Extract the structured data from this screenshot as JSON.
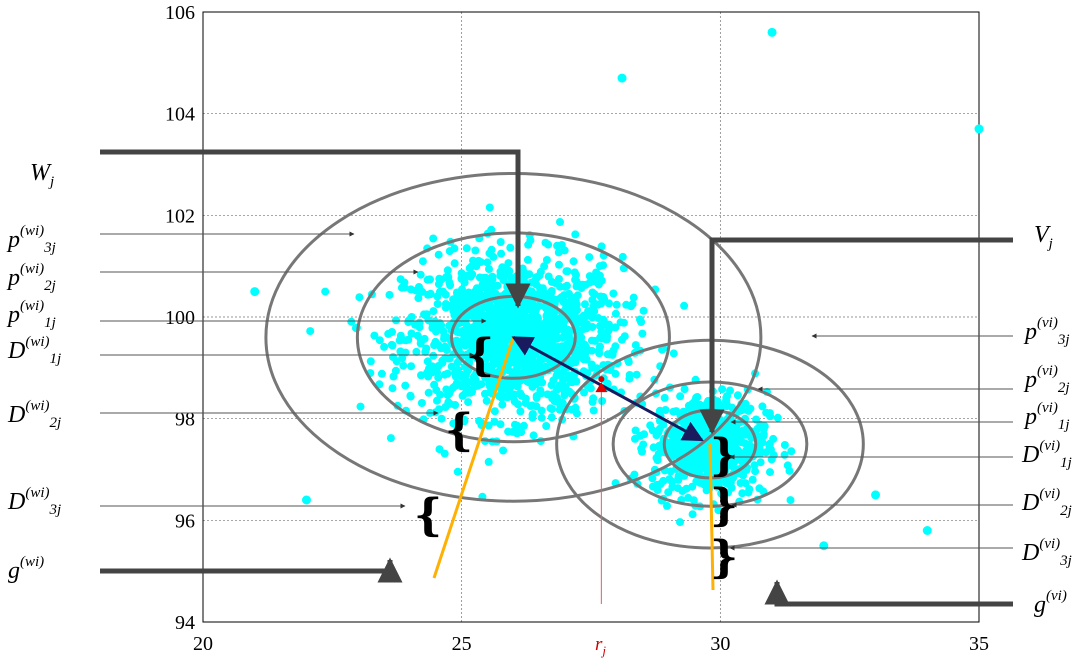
{
  "chart_data": {
    "type": "scatter",
    "xlim": [
      20,
      35
    ],
    "ylim": [
      94,
      106
    ],
    "x_ticks": [
      "20",
      "25",
      "30",
      "35"
    ],
    "y_ticks": [
      "94",
      "96",
      "98",
      "100",
      "102",
      "104",
      "106"
    ],
    "grid": true,
    "clusters": [
      {
        "center": [
          26,
          99.6
        ],
        "spread_x": 1.9,
        "spread_y": 1.3,
        "count": 1400
      },
      {
        "center": [
          29.8,
          97.5
        ],
        "spread_x": 1.0,
        "spread_y": 0.85,
        "count": 650
      }
    ],
    "outliers": [
      [
        31,
        105.6
      ],
      [
        28.1,
        104.7
      ],
      [
        35,
        103.7
      ],
      [
        22,
        96.4
      ],
      [
        34,
        95.8
      ],
      [
        21,
        100.5
      ],
      [
        32,
        95.5
      ],
      [
        33,
        96.5
      ]
    ],
    "circles_w": {
      "center": [
        26,
        99.6
      ],
      "radii": [
        [
          2.3,
          1.55
        ],
        [
          5.8,
          3.95
        ],
        [
          9.2,
          6.2
        ]
      ]
    },
    "circles_v": {
      "center": [
        29.8,
        97.5
      ],
      "radii": [
        [
          1.7,
          1.28
        ],
        [
          3.6,
          2.35
        ],
        [
          5.7,
          3.93
        ]
      ]
    },
    "r_marker": {
      "x": 27.7,
      "y": 98.7
    },
    "colors": {
      "points": "#00ffff",
      "circles": "#777777",
      "arrow": "#1a1a5e",
      "segments": "#ffb000",
      "marker": "#e00000",
      "callout": "#444444"
    }
  },
  "labels": {
    "W": {
      "base": "W",
      "sub": "j"
    },
    "V": {
      "base": "V",
      "sub": "j"
    },
    "r": "r",
    "r_sub": "j",
    "left": [
      {
        "base": "p",
        "sup": "(wi)",
        "sub": "3j"
      },
      {
        "base": "p",
        "sup": "(wi)",
        "sub": "2j"
      },
      {
        "base": "p",
        "sup": "(wi)",
        "sub": "1j"
      },
      {
        "base": "D",
        "sup": "(wi)",
        "sub": "1j"
      },
      {
        "base": "D",
        "sup": "(wi)",
        "sub": "2j"
      },
      {
        "base": "D",
        "sup": "(wi)",
        "sub": "3j"
      },
      {
        "base": "g",
        "sup": "(wi)",
        "sub": ""
      }
    ],
    "right": [
      {
        "base": "p",
        "sup": "(vi)",
        "sub": "3j"
      },
      {
        "base": "p",
        "sup": "(vi)",
        "sub": "2j"
      },
      {
        "base": "p",
        "sup": "(vi)",
        "sub": "1j"
      },
      {
        "base": "D",
        "sup": "(vi)",
        "sub": "1j"
      },
      {
        "base": "D",
        "sup": "(vi)",
        "sub": "2j"
      },
      {
        "base": "D",
        "sup": "(vi)",
        "sub": "3j"
      },
      {
        "base": "g",
        "sup": "(vi)",
        "sub": ""
      }
    ]
  }
}
